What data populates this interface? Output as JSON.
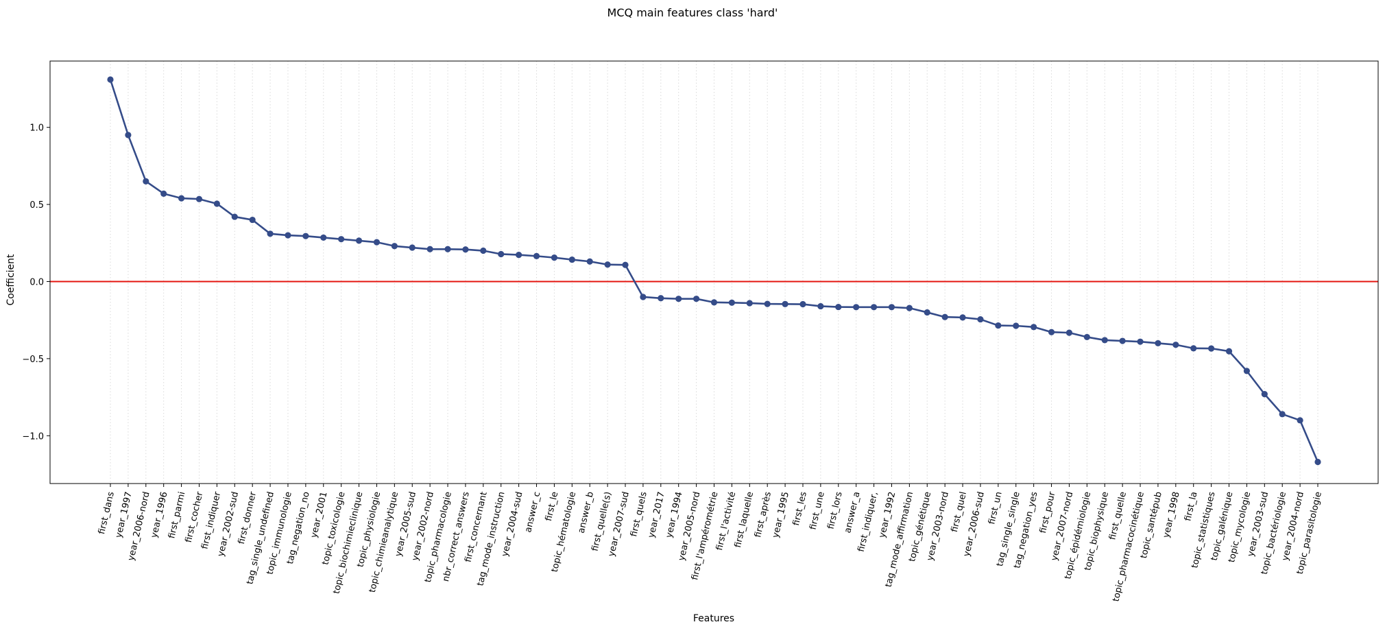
{
  "colors": {
    "line": "#354C89",
    "zero_line": "#E4140F",
    "grid": "#D9D9D9",
    "axis": "#000000"
  },
  "chart_data": {
    "type": "line",
    "title": "MCQ main features class 'hard'",
    "xlabel": "Features",
    "ylabel": "Coefficient",
    "ylim": [
      -1.31,
      1.43
    ],
    "yticks": [
      -1.0,
      -0.5,
      0.0,
      0.5,
      1.0
    ],
    "ytick_labels": [
      "−1.0",
      "−0.5",
      "0.0",
      "0.5",
      "1.0"
    ],
    "grid": "vertical dotted",
    "reference_line": 0.0,
    "categories": [
      "first_dans",
      "year_1997",
      "year_2006-nord",
      "year_1996",
      "first_parmi",
      "first_cocher",
      "first_indiquer",
      "year_2002-sud",
      "first_donner",
      "tag_single_undefined",
      "topic_immunologie",
      "tag_negation_no",
      "year_2001",
      "topic_toxicologie",
      "topic_biochimieclinique",
      "topic_physiologie",
      "topic_chimieanalytique",
      "year_2005-sud",
      "year_2002-nord",
      "topic_pharmacologie",
      "nbr_correct_answers",
      "first_concernant",
      "tag_mode_instruction",
      "year_2004-sud",
      "answer_c",
      "first_le",
      "topic_hématologie",
      "answer_b",
      "first_quelle(s)",
      "year_2007-sud",
      "first_quels",
      "year_2017",
      "year_1994",
      "year_2005-nord",
      "first_l'ampérométrie",
      "first_l'activité",
      "first_laquelle",
      "first_après",
      "year_1995",
      "first_les",
      "first_une",
      "first_lors",
      "answer_a",
      "first_indiquer,",
      "year_1992",
      "tag_mode_affirmation",
      "topic_génétique",
      "year_2003-nord",
      "first_quel",
      "year_2006-sud",
      "first_un",
      "tag_single_single",
      "tag_negation_yes",
      "first_pour",
      "year_2007-nord",
      "topic_épidémiologie",
      "topic_biophysique",
      "first_quelle",
      "topic_pharmacocinétique",
      "topic_santépub",
      "year_1998",
      "first_la",
      "topic_statistiques",
      "topic_galénique",
      "topic_mycologie",
      "year_2003-sud",
      "topic_bactériologie",
      "year_2004-nord",
      "topic_parasitologie"
    ],
    "series": [
      {
        "values": [
          1.31,
          0.95,
          0.65,
          0.57,
          0.54,
          0.535,
          0.505,
          0.42,
          0.4,
          0.31,
          0.3,
          0.295,
          0.285,
          0.275,
          0.265,
          0.255,
          0.23,
          0.22,
          0.21,
          0.21,
          0.208,
          0.2,
          0.178,
          0.173,
          0.165,
          0.155,
          0.142,
          0.13,
          0.11,
          0.108,
          -0.1,
          -0.108,
          -0.112,
          -0.112,
          -0.135,
          -0.137,
          -0.14,
          -0.145,
          -0.146,
          -0.147,
          -0.16,
          -0.165,
          -0.166,
          -0.166,
          -0.166,
          -0.172,
          -0.2,
          -0.23,
          -0.233,
          -0.245,
          -0.285,
          -0.287,
          -0.295,
          -0.328,
          -0.332,
          -0.36,
          -0.38,
          -0.385,
          -0.39,
          -0.4,
          -0.41,
          -0.433,
          -0.434,
          -0.452,
          -0.58,
          -0.73,
          -0.86,
          -0.9,
          -1.17
        ]
      }
    ]
  }
}
